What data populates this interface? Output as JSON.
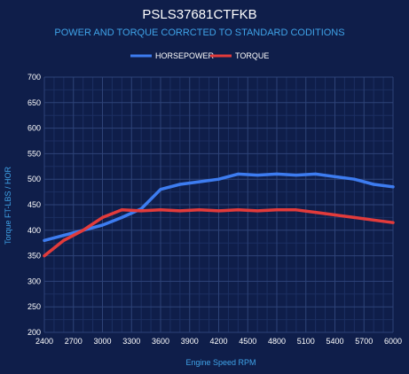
{
  "colors": {
    "background": "#0f1e4a",
    "horsepower": "#3d7cf0",
    "torque": "#e23b3b",
    "subtitle": "#3fa3e8",
    "axis_title": "#3fa3e8",
    "grid": "#2e4378"
  },
  "chart_data": {
    "type": "line",
    "title": "PSLS37681CTFKB",
    "subtitle": "POWER AND TORQUE CORRCTED TO STANDARD CODITIONS",
    "xlabel": "Engine Speed RPM",
    "ylabel": "Torque FT-LBS / HOR",
    "xlim": [
      2400,
      6000
    ],
    "ylim": [
      200,
      700
    ],
    "xticks": [
      2400,
      2700,
      3000,
      3300,
      3600,
      3900,
      4200,
      4500,
      4800,
      5100,
      5400,
      5700,
      6000
    ],
    "yticks": [
      200,
      250,
      300,
      350,
      400,
      450,
      500,
      550,
      600,
      650,
      700
    ],
    "grid": true,
    "legend_position": "top-center",
    "series": [
      {
        "name": "HORSEPOWER",
        "color": "#3d7cf0",
        "x": [
          2400,
          2600,
          2800,
          3000,
          3200,
          3400,
          3600,
          3800,
          4000,
          4200,
          4400,
          4600,
          4800,
          5000,
          5200,
          5400,
          5600,
          5800,
          6000
        ],
        "y": [
          380,
          390,
          400,
          410,
          425,
          442,
          480,
          490,
          495,
          500,
          510,
          508,
          510,
          508,
          510,
          505,
          500,
          490,
          485
        ]
      },
      {
        "name": "TORQUE",
        "color": "#e23b3b",
        "x": [
          2400,
          2600,
          2800,
          3000,
          3200,
          3400,
          3600,
          3800,
          4000,
          4200,
          4400,
          4600,
          4800,
          5000,
          5200,
          5400,
          5600,
          5800,
          6000
        ],
        "y": [
          350,
          380,
          400,
          425,
          440,
          438,
          440,
          438,
          440,
          438,
          440,
          438,
          440,
          440,
          435,
          430,
          425,
          420,
          415
        ]
      }
    ]
  }
}
